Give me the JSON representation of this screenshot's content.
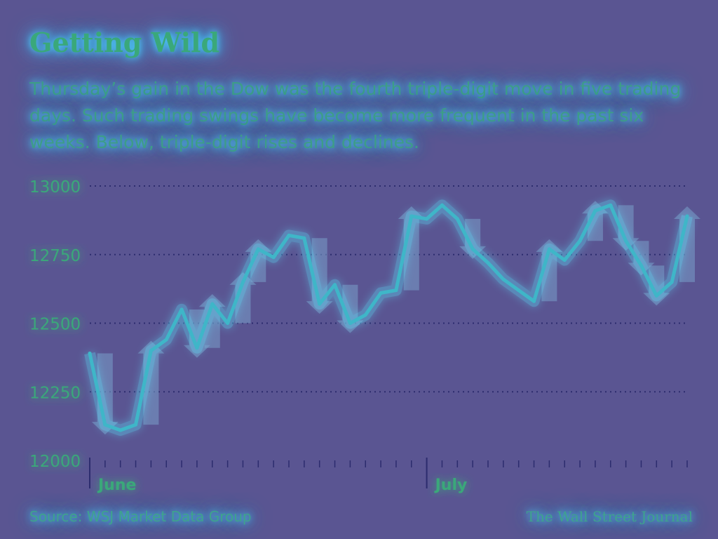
{
  "header": {
    "title": "Getting Wild",
    "subtitle": "Thursday’s gain in the Dow was the fourth triple-digit move in five trading days. Such trading swings have become more frequent in the past six weeks. Below, triple-digit rises and declines."
  },
  "footer": {
    "source": "Source: WSJ Market Data Group",
    "publisher": "The Wall Street Journal"
  },
  "colors": {
    "background": "#5a5592",
    "line": "#3fb6c8",
    "line_glow": "#5ce8ff",
    "text": "#3aa87a",
    "gridline": "#2c2c6e",
    "arrow": "#7a9fc9"
  },
  "chart_data": {
    "type": "line",
    "title": "Getting Wild",
    "xlabel": "",
    "ylabel": "",
    "ylim": [
      12000,
      13000
    ],
    "yticks": [
      12000,
      12250,
      12500,
      12750,
      13000
    ],
    "ytick_labels": [
      "12000",
      "12250",
      "12500",
      "12750",
      "13000"
    ],
    "grid": true,
    "x_month_labels": [
      {
        "label": "June",
        "index": 0
      },
      {
        "label": "July",
        "index": 22
      }
    ],
    "series": [
      {
        "values": [
          12390,
          12130,
          12110,
          12130,
          12400,
          12440,
          12550,
          12410,
          12570,
          12500,
          12650,
          12770,
          12740,
          12820,
          12810,
          12570,
          12640,
          12500,
          12530,
          12610,
          12620,
          12890,
          12880,
          12930,
          12880,
          12770,
          12720,
          12660,
          12620,
          12580,
          12770,
          12730,
          12800,
          12910,
          12930,
          12800,
          12710,
          12600,
          12650,
          12890
        ]
      }
    ],
    "triple_digit_moves": [
      {
        "index": 1,
        "direction": "down"
      },
      {
        "index": 4,
        "direction": "up"
      },
      {
        "index": 7,
        "direction": "down"
      },
      {
        "index": 8,
        "direction": "up"
      },
      {
        "index": 10,
        "direction": "up"
      },
      {
        "index": 11,
        "direction": "up"
      },
      {
        "index": 15,
        "direction": "down"
      },
      {
        "index": 17,
        "direction": "down"
      },
      {
        "index": 21,
        "direction": "up"
      },
      {
        "index": 25,
        "direction": "down"
      },
      {
        "index": 30,
        "direction": "up"
      },
      {
        "index": 33,
        "direction": "up"
      },
      {
        "index": 35,
        "direction": "down"
      },
      {
        "index": 36,
        "direction": "down"
      },
      {
        "index": 37,
        "direction": "down"
      },
      {
        "index": 39,
        "direction": "up"
      }
    ]
  }
}
